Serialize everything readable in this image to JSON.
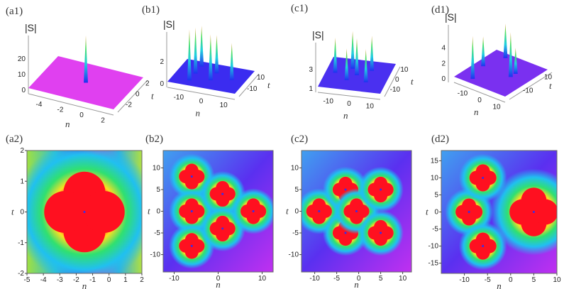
{
  "chart_data": [
    {
      "panel": "(a1)",
      "type": "surface3d",
      "zlabel": "|S|",
      "xlabel": "n",
      "ylabel": "t",
      "zticks": [
        "0",
        "10",
        "20"
      ],
      "xticks": [
        "-4",
        "-2",
        "0",
        "2"
      ],
      "yticks": [
        "-2",
        "0",
        "2"
      ],
      "surface_color": "#e040f0",
      "peaks": [
        {
          "n": -1.5,
          "t": 0,
          "height": 20
        }
      ]
    },
    {
      "panel": "(b1)",
      "type": "surface3d",
      "zlabel": "|S|",
      "xlabel": "n",
      "ylabel": "t",
      "zticks": [
        "0",
        "2"
      ],
      "xticks": [
        "-10",
        "0",
        "10"
      ],
      "yticks": [
        "-10",
        "10"
      ],
      "surface_color": "#3b2cf0",
      "peaks": [
        {
          "n": -6,
          "t": 8,
          "height": 3.2
        },
        {
          "n": -6,
          "t": 0,
          "height": 3.6
        },
        {
          "n": -6,
          "t": -8,
          "height": 4.0
        },
        {
          "n": 1,
          "t": 4,
          "height": 3.0
        },
        {
          "n": 1,
          "t": -4,
          "height": 3.6
        },
        {
          "n": 8,
          "t": 0,
          "height": 2.9
        }
      ]
    },
    {
      "panel": "(c1)",
      "type": "surface3d",
      "zlabel": "|S|",
      "xlabel": "n",
      "ylabel": "t",
      "zticks": [
        "1",
        "3"
      ],
      "xticks": [
        "-10",
        "0",
        "10"
      ],
      "yticks": [
        "-10",
        "0",
        "10"
      ],
      "surface_color": "#4a30f0",
      "peaks": [
        {
          "n": -9,
          "t": 0,
          "height": 4.0
        },
        {
          "n": -3,
          "t": 5,
          "height": 4.3
        },
        {
          "n": -3,
          "t": -5,
          "height": 3.6
        },
        {
          "n": 0,
          "t": 0,
          "height": 4.2
        },
        {
          "n": 5,
          "t": 5,
          "height": 4.0
        },
        {
          "n": 5,
          "t": -5,
          "height": 3.8
        }
      ]
    },
    {
      "panel": "(d1)",
      "type": "surface3d",
      "zlabel": "|S|",
      "xlabel": "n",
      "ylabel": "t",
      "zticks": [
        "0",
        "2",
        "4"
      ],
      "xticks": [
        "-10",
        "0",
        "10"
      ],
      "yticks": [
        "-10",
        "10"
      ],
      "surface_color": "#7a30f0",
      "peaks": [
        {
          "n": -9,
          "t": 0,
          "height": 3.2
        },
        {
          "n": -6,
          "t": 10,
          "height": 3.7
        },
        {
          "n": -6,
          "t": -10,
          "height": 4.6
        },
        {
          "n": 5,
          "t": 0,
          "height": 4.8
        },
        {
          "n": 5,
          "t": 3,
          "height": 2.8
        }
      ]
    },
    {
      "panel": "(a2)",
      "type": "heatmap",
      "xlabel": "n",
      "ylabel": "t",
      "xlim": [
        -5,
        2
      ],
      "ylim": [
        -2,
        2
      ],
      "xticks": [
        "-5",
        "-4",
        "-3",
        "-2",
        "-1",
        "0",
        "1",
        "2"
      ],
      "yticks": [
        "-2",
        "-1",
        "0",
        "1",
        "2"
      ],
      "lumps": [
        {
          "n": -1.5,
          "t": 0,
          "size": 0.5
        }
      ]
    },
    {
      "panel": "(b2)",
      "type": "heatmap",
      "xlabel": "n",
      "ylabel": "t",
      "xlim": [
        -12.5,
        12.5
      ],
      "ylim": [
        -14,
        14
      ],
      "xticks": [
        "-10",
        "0",
        "10"
      ],
      "yticks": [
        "-10",
        "-5",
        "0",
        "5",
        "10"
      ],
      "lumps": [
        {
          "n": -6,
          "t": 8,
          "size": 1
        },
        {
          "n": -6,
          "t": 0,
          "size": 1
        },
        {
          "n": -6,
          "t": -8,
          "size": 1
        },
        {
          "n": 1,
          "t": 4,
          "size": 1
        },
        {
          "n": 1,
          "t": -4,
          "size": 1
        },
        {
          "n": 8,
          "t": 0,
          "size": 1
        }
      ]
    },
    {
      "panel": "(c2)",
      "type": "heatmap",
      "xlabel": "n",
      "ylabel": "t",
      "xlim": [
        -13,
        12
      ],
      "ylim": [
        -14,
        14
      ],
      "xticks": [
        "-10",
        "-5",
        "0",
        "5",
        "10"
      ],
      "yticks": [
        "-10",
        "-5",
        "0",
        "5",
        "10"
      ],
      "lumps": [
        {
          "n": -9,
          "t": 0,
          "size": 1
        },
        {
          "n": -3,
          "t": 5,
          "size": 1
        },
        {
          "n": -3,
          "t": -5,
          "size": 1
        },
        {
          "n": -0.5,
          "t": 0,
          "size": 1
        },
        {
          "n": 5,
          "t": 5,
          "size": 1
        },
        {
          "n": 5,
          "t": -5,
          "size": 1
        }
      ]
    },
    {
      "panel": "(d2)",
      "type": "heatmap",
      "xlabel": "n",
      "ylabel": "t",
      "xlim": [
        -15,
        10
      ],
      "ylim": [
        -18,
        18
      ],
      "xticks": [
        "-10",
        "-5",
        "0",
        "5",
        "10"
      ],
      "yticks": [
        "-15",
        "-10",
        "-5",
        "0",
        "5",
        "10",
        "15"
      ],
      "lumps": [
        {
          "n": -9,
          "t": 0,
          "size": 1
        },
        {
          "n": -6,
          "t": 10,
          "size": 1
        },
        {
          "n": -6,
          "t": -10,
          "size": 1
        },
        {
          "n": 5,
          "t": 0,
          "size": 1.8
        }
      ]
    }
  ]
}
